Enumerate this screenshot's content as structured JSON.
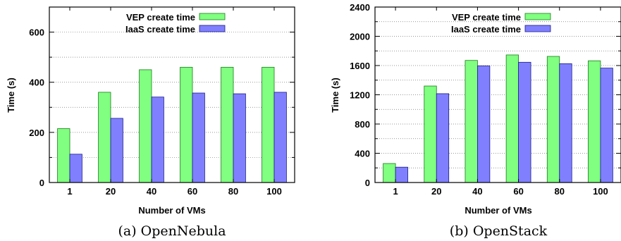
{
  "chart_data": [
    {
      "type": "bar",
      "caption": "(a)  OpenNebula",
      "xlabel": "Number of VMs",
      "ylabel": "Time (s)",
      "categories": [
        "1",
        "20",
        "40",
        "60",
        "80",
        "100"
      ],
      "ylim": [
        0,
        700
      ],
      "yticks": [
        "0",
        "200",
        "400",
        "600"
      ],
      "ytick_values": [
        0,
        200,
        400,
        600
      ],
      "legend_position": "top-left",
      "grid": true,
      "series": [
        {
          "name": "VEP create time",
          "color": "#80ff80",
          "values": [
            215,
            360,
            450,
            460,
            460,
            460
          ]
        },
        {
          "name": "IaaS create time",
          "color": "#8080ff",
          "values": [
            113,
            256,
            341,
            357,
            354,
            360
          ]
        }
      ]
    },
    {
      "type": "bar",
      "caption": "(b)  OpenStack",
      "xlabel": "Number of VMs",
      "ylabel": "Time (s)",
      "categories": [
        "1",
        "20",
        "40",
        "60",
        "80",
        "100"
      ],
      "ylim": [
        0,
        2400
      ],
      "yticks": [
        "0",
        "400",
        "800",
        "1200",
        "1600",
        "2000",
        "2400"
      ],
      "ytick_values": [
        0,
        400,
        800,
        1200,
        1600,
        2000,
        2400
      ],
      "legend_position": "top-left",
      "grid": true,
      "series": [
        {
          "name": "VEP create time",
          "color": "#80ff80",
          "values": [
            260,
            1320,
            1670,
            1745,
            1725,
            1665
          ]
        },
        {
          "name": "IaaS create time",
          "color": "#8080ff",
          "values": [
            210,
            1215,
            1595,
            1645,
            1625,
            1565
          ]
        }
      ]
    }
  ]
}
